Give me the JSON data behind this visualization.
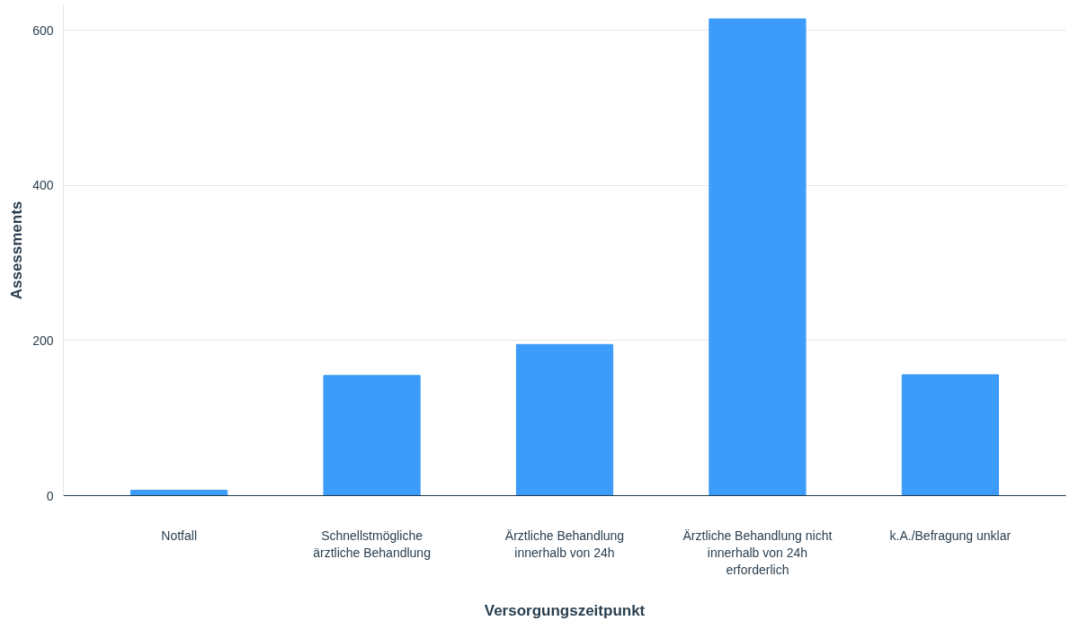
{
  "chart_data": {
    "type": "bar",
    "xlabel": "Versorgungszeitpunkt",
    "ylabel": "Assessments",
    "categories": [
      "Notfall",
      "Schnellstmögliche ärztliche Behandlung",
      "Ärztliche Behandlung innerhalb von 24h",
      "Ärztliche Behandlung nicht innerhalb von 24h erforderlich",
      "k.A./Befragung unklar"
    ],
    "values": [
      7,
      155,
      195,
      615,
      156
    ],
    "color": "#3d9bf9",
    "ylim": [
      0,
      633
    ],
    "yticks": [
      0,
      200,
      400,
      600
    ],
    "grid": "y"
  }
}
